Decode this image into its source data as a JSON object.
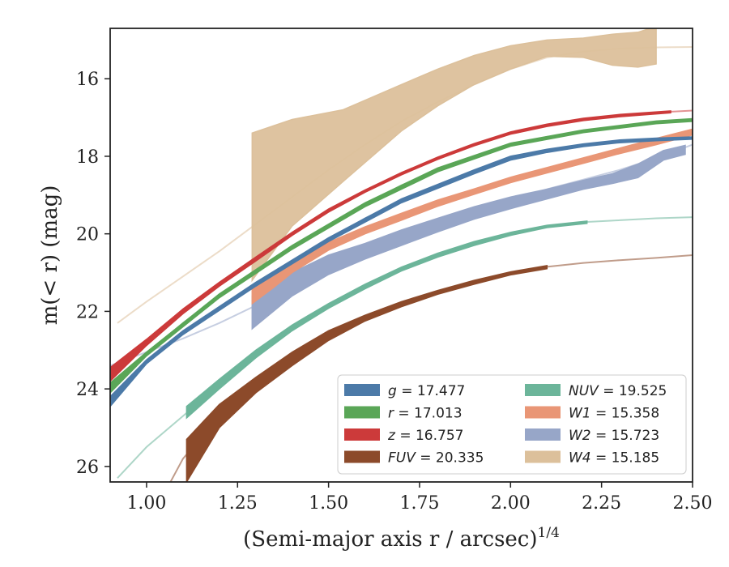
{
  "chart_data": {
    "type": "line",
    "xlabel": "(Semi-major axis r / arcsec)",
    "xlabel_superscript": "1/4",
    "ylabel": "m(< r) (mag)",
    "xlim": [
      0.9,
      2.5
    ],
    "ylim": [
      26.4,
      14.7
    ],
    "y_inverted": true,
    "x_ticks": [
      "1.00",
      "1.25",
      "1.50",
      "1.75",
      "2.00",
      "2.25",
      "2.50"
    ],
    "x_tick_values": [
      1.0,
      1.25,
      1.5,
      1.75,
      2.0,
      2.25,
      2.5
    ],
    "y_ticks": [
      "16",
      "18",
      "20",
      "22",
      "24",
      "26"
    ],
    "y_tick_values": [
      16,
      18,
      20,
      22,
      24,
      26
    ],
    "grid": false,
    "legend_position": "lower-right",
    "series": [
      {
        "name": "g = 17.477",
        "legend_italic": "g",
        "legend_rest": " = 17.477",
        "color": "#4c7aa8",
        "model": [
          [
            0.9,
            24.35
          ],
          [
            1.0,
            23.3
          ],
          [
            1.1,
            22.55
          ],
          [
            1.2,
            21.9
          ],
          [
            1.3,
            21.3
          ],
          [
            1.4,
            20.75
          ],
          [
            1.5,
            20.15
          ],
          [
            1.6,
            19.6
          ],
          [
            1.7,
            19.15
          ],
          [
            1.8,
            18.75
          ],
          [
            1.9,
            18.4
          ],
          [
            2.0,
            18.05
          ],
          [
            2.1,
            17.85
          ],
          [
            2.2,
            17.7
          ],
          [
            2.3,
            17.6
          ],
          [
            2.4,
            17.55
          ],
          [
            2.5,
            17.53
          ]
        ],
        "band": [
          [
            0.9,
            24.2,
            24.45
          ],
          [
            1.0,
            23.25,
            23.35
          ],
          [
            1.1,
            22.5,
            22.6
          ],
          [
            1.3,
            21.25,
            21.35
          ],
          [
            1.5,
            20.1,
            20.2
          ],
          [
            1.7,
            19.1,
            19.2
          ],
          [
            1.9,
            18.35,
            18.45
          ],
          [
            2.0,
            18.0,
            18.1
          ],
          [
            2.1,
            17.82,
            17.9
          ],
          [
            2.2,
            17.68,
            17.75
          ],
          [
            2.3,
            17.58,
            17.65
          ],
          [
            2.4,
            17.53,
            17.6
          ],
          [
            2.5,
            17.5,
            17.56
          ]
        ]
      },
      {
        "name": "r = 17.013",
        "legend_italic": "r",
        "legend_rest": " = 17.013",
        "color": "#5aa657",
        "model": [
          [
            0.9,
            24.0
          ],
          [
            1.0,
            23.1
          ],
          [
            1.1,
            22.3
          ],
          [
            1.2,
            21.6
          ],
          [
            1.3,
            20.95
          ],
          [
            1.4,
            20.35
          ],
          [
            1.5,
            19.8
          ],
          [
            1.6,
            19.25
          ],
          [
            1.7,
            18.75
          ],
          [
            1.8,
            18.35
          ],
          [
            1.9,
            18.0
          ],
          [
            2.0,
            17.7
          ],
          [
            2.1,
            17.5
          ],
          [
            2.2,
            17.35
          ],
          [
            2.3,
            17.22
          ],
          [
            2.4,
            17.12
          ],
          [
            2.5,
            17.06
          ]
        ],
        "band": [
          [
            0.9,
            23.85,
            24.1
          ],
          [
            1.0,
            23.05,
            23.15
          ],
          [
            1.2,
            21.55,
            21.65
          ],
          [
            1.4,
            20.3,
            20.4
          ],
          [
            1.6,
            19.2,
            19.3
          ],
          [
            1.8,
            18.3,
            18.4
          ],
          [
            2.0,
            17.66,
            17.74
          ],
          [
            2.2,
            17.32,
            17.39
          ],
          [
            2.4,
            17.09,
            17.16
          ],
          [
            2.5,
            17.03,
            17.1
          ]
        ]
      },
      {
        "name": "z = 16.757",
        "legend_italic": "z",
        "legend_rest": " = 16.757",
        "color": "#cc3a3a",
        "model": [
          [
            0.9,
            23.65
          ],
          [
            1.0,
            22.8
          ],
          [
            1.1,
            22.0
          ],
          [
            1.2,
            21.3
          ],
          [
            1.3,
            20.65
          ],
          [
            1.4,
            20.0
          ],
          [
            1.5,
            19.4
          ],
          [
            1.6,
            18.9
          ],
          [
            1.7,
            18.45
          ],
          [
            1.8,
            18.05
          ],
          [
            1.9,
            17.7
          ],
          [
            2.0,
            17.4
          ],
          [
            2.1,
            17.2
          ],
          [
            2.2,
            17.05
          ],
          [
            2.3,
            16.95
          ],
          [
            2.4,
            16.87
          ],
          [
            2.5,
            16.82
          ]
        ],
        "band": [
          [
            0.9,
            23.45,
            23.8
          ],
          [
            1.0,
            22.72,
            22.88
          ],
          [
            1.1,
            21.94,
            22.06
          ],
          [
            1.2,
            21.25,
            21.35
          ],
          [
            1.3,
            20.6,
            20.7
          ],
          [
            1.4,
            19.96,
            20.04
          ],
          [
            1.5,
            19.36,
            19.44
          ],
          [
            1.6,
            18.87,
            18.93
          ],
          [
            1.7,
            18.42,
            18.48
          ],
          [
            1.8,
            18.02,
            18.08
          ],
          [
            1.9,
            17.67,
            17.73
          ],
          [
            2.0,
            17.37,
            17.43
          ],
          [
            2.1,
            17.17,
            17.23
          ],
          [
            2.2,
            17.02,
            17.08
          ],
          [
            2.3,
            16.92,
            16.98
          ],
          [
            2.44,
            16.83,
            16.88
          ]
        ]
      },
      {
        "name": "FUV = 20.335",
        "legend_italic": "FUV",
        "legend_rest": " = 20.335",
        "color": "#8c4a2a",
        "model": [
          [
            1.06,
            26.5
          ],
          [
            1.1,
            25.8
          ],
          [
            1.2,
            24.7
          ],
          [
            1.3,
            23.85
          ],
          [
            1.4,
            23.2
          ],
          [
            1.5,
            22.6
          ],
          [
            1.6,
            22.15
          ],
          [
            1.7,
            21.8
          ],
          [
            1.8,
            21.5
          ],
          [
            1.9,
            21.25
          ],
          [
            2.0,
            21.0
          ],
          [
            2.1,
            20.85
          ],
          [
            2.2,
            20.75
          ],
          [
            2.3,
            20.68
          ],
          [
            2.4,
            20.62
          ],
          [
            2.5,
            20.55
          ]
        ],
        "band": [
          [
            1.11,
            25.3,
            26.4
          ],
          [
            1.2,
            24.4,
            25.0
          ],
          [
            1.3,
            23.7,
            24.1
          ],
          [
            1.4,
            23.05,
            23.4
          ],
          [
            1.5,
            22.5,
            22.75
          ],
          [
            1.6,
            22.1,
            22.25
          ],
          [
            1.7,
            21.75,
            21.88
          ],
          [
            1.8,
            21.46,
            21.56
          ],
          [
            1.9,
            21.2,
            21.3
          ],
          [
            2.0,
            20.98,
            21.06
          ],
          [
            2.1,
            20.82,
            20.9
          ]
        ]
      },
      {
        "name": "NUV = 19.525",
        "legend_italic": "NUV",
        "legend_rest": " = 19.525",
        "color": "#6cb59a",
        "model": [
          [
            0.92,
            26.3
          ],
          [
            1.0,
            25.5
          ],
          [
            1.1,
            24.7
          ],
          [
            1.2,
            23.9
          ],
          [
            1.3,
            23.1
          ],
          [
            1.4,
            22.45
          ],
          [
            1.5,
            21.85
          ],
          [
            1.6,
            21.35
          ],
          [
            1.7,
            20.9
          ],
          [
            1.8,
            20.55
          ],
          [
            1.9,
            20.25
          ],
          [
            2.0,
            20.0
          ],
          [
            2.1,
            19.8
          ],
          [
            2.2,
            19.7
          ],
          [
            2.3,
            19.65
          ],
          [
            2.4,
            19.6
          ],
          [
            2.5,
            19.57
          ]
        ],
        "band": [
          [
            1.11,
            24.45,
            24.75
          ],
          [
            1.2,
            23.75,
            24.0
          ],
          [
            1.3,
            23.0,
            23.2
          ],
          [
            1.4,
            22.35,
            22.5
          ],
          [
            1.5,
            21.8,
            21.92
          ],
          [
            1.6,
            21.3,
            21.42
          ],
          [
            1.7,
            20.86,
            20.96
          ],
          [
            1.8,
            20.5,
            20.6
          ],
          [
            1.9,
            20.2,
            20.3
          ],
          [
            2.0,
            19.96,
            20.04
          ],
          [
            2.1,
            19.78,
            19.84
          ],
          [
            2.21,
            19.67,
            19.73
          ]
        ]
      },
      {
        "name": "W1 = 15.358",
        "legend_italic": "W1",
        "legend_rest": " = 15.358",
        "color": "#e99676",
        "model": [
          [
            1.29,
            21.6
          ],
          [
            1.35,
            21.2
          ],
          [
            1.4,
            20.85
          ],
          [
            1.5,
            20.3
          ],
          [
            1.6,
            19.9
          ],
          [
            1.7,
            19.55
          ],
          [
            1.8,
            19.2
          ],
          [
            1.9,
            18.9
          ],
          [
            2.0,
            18.6
          ],
          [
            2.1,
            18.35
          ],
          [
            2.2,
            18.1
          ],
          [
            2.3,
            17.85
          ],
          [
            2.4,
            17.6
          ],
          [
            2.5,
            17.35
          ]
        ],
        "band": [
          [
            1.29,
            21.4,
            21.8
          ],
          [
            1.35,
            21.1,
            21.38
          ],
          [
            1.4,
            20.78,
            21.0
          ],
          [
            1.5,
            20.22,
            20.42
          ],
          [
            1.6,
            19.82,
            20.0
          ],
          [
            1.7,
            19.47,
            19.65
          ],
          [
            1.8,
            19.13,
            19.29
          ],
          [
            1.9,
            18.84,
            18.98
          ],
          [
            2.0,
            18.54,
            18.68
          ],
          [
            2.1,
            18.29,
            18.43
          ],
          [
            2.2,
            18.04,
            18.18
          ],
          [
            2.3,
            17.79,
            17.93
          ],
          [
            2.4,
            17.54,
            17.7
          ],
          [
            2.5,
            17.3,
            17.45
          ]
        ]
      },
      {
        "name": "W2 = 15.723",
        "legend_italic": "W2",
        "legend_rest": " = 15.723",
        "color": "#97a6c8",
        "model": [
          [
            0.9,
            23.4
          ],
          [
            1.0,
            23.05
          ],
          [
            1.1,
            22.7
          ],
          [
            1.2,
            22.3
          ],
          [
            1.3,
            21.85
          ],
          [
            1.4,
            21.4
          ],
          [
            1.5,
            20.95
          ],
          [
            1.6,
            20.55
          ],
          [
            1.7,
            20.15
          ],
          [
            1.8,
            19.8
          ],
          [
            1.9,
            19.45
          ],
          [
            2.0,
            19.15
          ],
          [
            2.1,
            18.85
          ],
          [
            2.2,
            18.6
          ],
          [
            2.3,
            18.35
          ],
          [
            2.4,
            18.05
          ],
          [
            2.5,
            17.7
          ]
        ],
        "band": [
          [
            1.29,
            21.6,
            22.45
          ],
          [
            1.4,
            21.0,
            21.6
          ],
          [
            1.5,
            20.55,
            21.05
          ],
          [
            1.6,
            20.25,
            20.65
          ],
          [
            1.7,
            19.9,
            20.3
          ],
          [
            1.8,
            19.6,
            19.95
          ],
          [
            1.9,
            19.3,
            19.62
          ],
          [
            2.0,
            19.05,
            19.35
          ],
          [
            2.1,
            18.85,
            19.1
          ],
          [
            2.2,
            18.62,
            18.85
          ],
          [
            2.28,
            18.45,
            18.7
          ],
          [
            2.35,
            18.2,
            18.55
          ],
          [
            2.42,
            17.85,
            18.1
          ],
          [
            2.48,
            17.72,
            17.95
          ]
        ]
      },
      {
        "name": "W4 = 15.185",
        "legend_italic": "W4",
        "legend_rest": " = 15.185",
        "color": "#dcc09b",
        "model": [
          [
            0.92,
            22.3
          ],
          [
            1.0,
            21.75
          ],
          [
            1.1,
            21.1
          ],
          [
            1.2,
            20.45
          ],
          [
            1.3,
            19.75
          ],
          [
            1.4,
            19.05
          ],
          [
            1.5,
            18.35
          ],
          [
            1.6,
            17.7
          ],
          [
            1.7,
            17.1
          ],
          [
            1.8,
            16.6
          ],
          [
            1.9,
            16.15
          ],
          [
            2.0,
            15.75
          ],
          [
            2.1,
            15.45
          ],
          [
            2.2,
            15.3
          ],
          [
            2.3,
            15.22
          ],
          [
            2.4,
            15.19
          ],
          [
            2.5,
            15.18
          ]
        ],
        "band": [
          [
            1.29,
            17.4,
            21.2
          ],
          [
            1.4,
            17.05,
            19.8
          ],
          [
            1.54,
            16.8,
            18.65
          ],
          [
            1.7,
            16.15,
            17.35
          ],
          [
            1.8,
            15.75,
            16.7
          ],
          [
            1.9,
            15.4,
            16.15
          ],
          [
            2.0,
            15.15,
            15.75
          ],
          [
            2.1,
            15.0,
            15.42
          ],
          [
            2.2,
            14.95,
            15.45
          ],
          [
            2.28,
            14.85,
            15.65
          ],
          [
            2.35,
            14.8,
            15.7
          ],
          [
            2.4,
            14.65,
            15.62
          ]
        ]
      }
    ]
  }
}
